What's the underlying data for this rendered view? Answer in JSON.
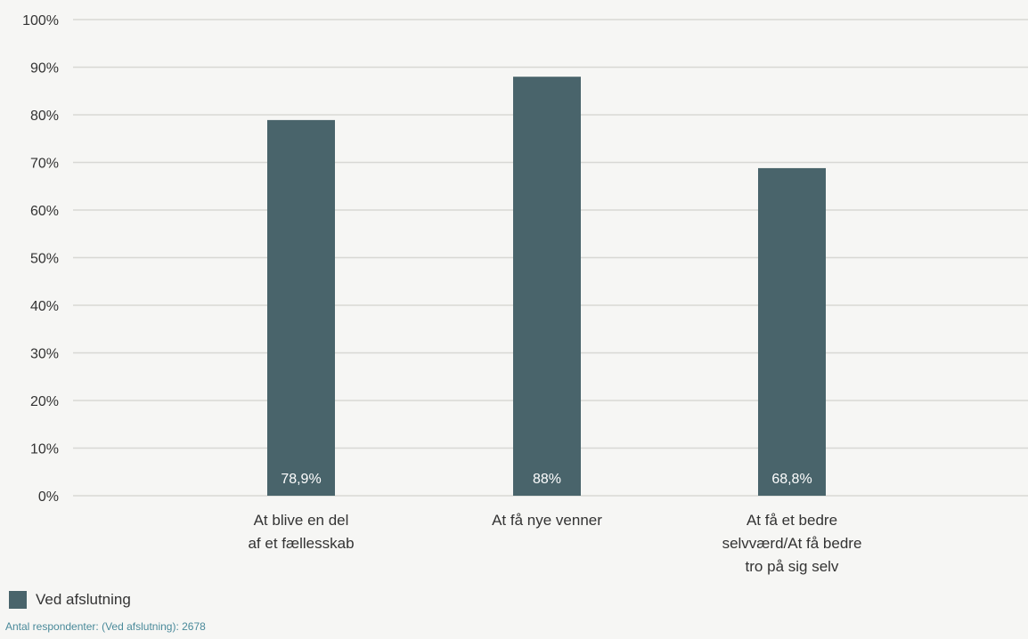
{
  "chart_data": {
    "type": "bar",
    "categories": [
      [
        "At blive en del",
        "af et fællesskab"
      ],
      [
        "At få nye venner"
      ],
      [
        "At få et bedre",
        "selvværd/At få bedre",
        "tro på sig selv"
      ]
    ],
    "series": [
      {
        "name": "Ved afslutning",
        "values": [
          78.9,
          88,
          68.8
        ],
        "labels": [
          "78,9%",
          "88%",
          "68,8%"
        ],
        "color": "#49646b"
      }
    ],
    "yticks": [
      "0%",
      "10%",
      "20%",
      "30%",
      "40%",
      "50%",
      "60%",
      "70%",
      "80%",
      "90%",
      "100%"
    ],
    "ylim": [
      0,
      100
    ],
    "grid": true,
    "legend_position": "bottom-left"
  },
  "legend": {
    "label": "Ved afslutning"
  },
  "footnote": "Antal respondenter: (Ved afslutning): 2678",
  "colors": {
    "bar": "#49646b",
    "grid": "#d8d8d4",
    "footnote": "#4a8a9a"
  }
}
